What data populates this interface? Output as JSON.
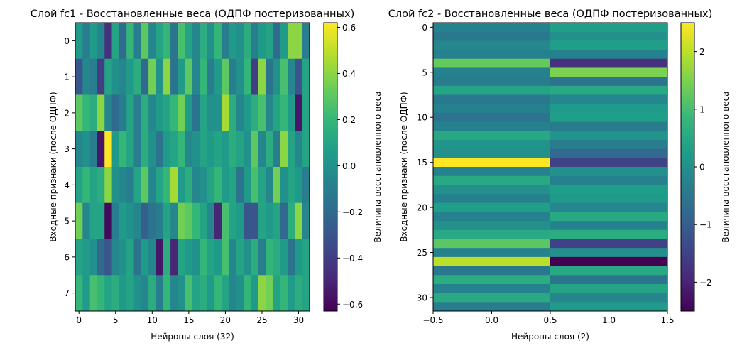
{
  "colors": {
    "viridis": [
      "#440154",
      "#482878",
      "#3e4989",
      "#31688e",
      "#26828e",
      "#1f9e89",
      "#35b779",
      "#6ece58",
      "#b5de2b",
      "#fde725"
    ]
  },
  "chart_data": [
    {
      "type": "heatmap",
      "title": "Слой fc1 - Восстановленные веса (ОДПФ постеризованных)",
      "xlabel": "Нейроны слоя (32)",
      "ylabel": "Входные признаки (после ОДПФ)",
      "colorbar_label": "Величина восстановленного веса",
      "xlim": [
        -0.5,
        31.5
      ],
      "ylim": [
        7.5,
        -0.5
      ],
      "x_ticks": [
        0,
        5,
        10,
        15,
        20,
        25,
        30
      ],
      "x_tick_labels": [
        "0",
        "5",
        "10",
        "15",
        "20",
        "25",
        "30"
      ],
      "y_ticks": [
        0,
        1,
        2,
        3,
        4,
        5,
        6,
        7
      ],
      "y_tick_labels": [
        "0",
        "1",
        "2",
        "3",
        "4",
        "5",
        "6",
        "7"
      ],
      "vmin": -0.63,
      "vmax": 0.62,
      "cbar_ticks": [
        0.6,
        0.4,
        0.2,
        0.0,
        -0.2,
        -0.4,
        -0.6
      ],
      "cbar_tick_labels": [
        "0.6",
        "0.4",
        "0.2",
        "0.0",
        "−0.2",
        "−0.4",
        "−0.6"
      ],
      "values": [
        [
          0.05,
          -0.1,
          0.05,
          -0.05,
          -0.45,
          0.1,
          -0.2,
          0.2,
          -0.1,
          0.3,
          -0.05,
          0.1,
          0.2,
          -0.15,
          0.25,
          0.1,
          -0.05,
          0.15,
          0.0,
          0.2,
          -0.1,
          0.05,
          0.0,
          0.15,
          -0.1,
          0.05,
          0.1,
          -0.2,
          0.05,
          0.4,
          0.4,
          -0.1
        ],
        [
          -0.3,
          -0.05,
          -0.1,
          -0.4,
          0.1,
          0.0,
          -0.05,
          0.05,
          0.15,
          -0.2,
          0.35,
          0.0,
          0.4,
          -0.15,
          0.05,
          0.3,
          -0.05,
          0.2,
          -0.1,
          0.05,
          0.3,
          -0.1,
          0.0,
          0.2,
          -0.4,
          0.4,
          -0.15,
          0.0,
          0.25,
          -0.05,
          -0.3,
          0.1
        ],
        [
          0.3,
          0.2,
          0.15,
          0.4,
          -0.05,
          -0.2,
          -0.1,
          0.1,
          -0.1,
          0.15,
          -0.05,
          0.05,
          0.1,
          0.2,
          0.35,
          0.05,
          -0.15,
          0.1,
          0.0,
          0.0,
          0.45,
          0.15,
          -0.05,
          0.05,
          0.15,
          0.25,
          -0.05,
          0.1,
          0.2,
          0.05,
          -0.55,
          0.1
        ],
        [
          -0.05,
          0.0,
          -0.1,
          -0.55,
          0.62,
          0.05,
          0.2,
          0.1,
          -0.1,
          0.15,
          0.0,
          -0.15,
          0.05,
          0.1,
          0.2,
          -0.05,
          0.0,
          0.1,
          0.05,
          0.1,
          0.05,
          0.15,
          0.1,
          0.0,
          0.3,
          -0.05,
          0.15,
          -0.1,
          0.4,
          0.1,
          -0.05,
          0.1
        ],
        [
          0.1,
          0.2,
          0.1,
          0.15,
          0.4,
          0.0,
          -0.05,
          -0.1,
          0.1,
          0.3,
          -0.05,
          0.1,
          0.2,
          0.45,
          0.05,
          0.15,
          -0.05,
          0.0,
          0.1,
          0.2,
          0.05,
          0.1,
          -0.15,
          0.05,
          0.25,
          0.1,
          -0.05,
          0.35,
          0.0,
          0.1,
          0.05,
          -0.1
        ],
        [
          0.35,
          -0.05,
          0.1,
          0.1,
          -0.6,
          -0.1,
          0.05,
          0.0,
          -0.05,
          -0.25,
          -0.15,
          -0.1,
          0.1,
          -0.05,
          0.35,
          0.3,
          0.2,
          0.1,
          -0.05,
          -0.5,
          0.25,
          0.1,
          0.05,
          -0.3,
          -0.3,
          0.1,
          0.05,
          0.1,
          -0.2,
          0.15,
          0.4,
          -0.05
        ],
        [
          0.1,
          0.05,
          0.0,
          -0.2,
          -0.3,
          -0.05,
          0.0,
          0.1,
          -0.15,
          0.05,
          -0.05,
          -0.55,
          0.15,
          -0.5,
          0.1,
          0.05,
          0.0,
          0.2,
          0.1,
          0.05,
          0.25,
          -0.05,
          0.1,
          0.0,
          0.15,
          -0.1,
          0.2,
          0.15,
          0.05,
          -0.15,
          0.05,
          0.1
        ],
        [
          0.2,
          0.05,
          0.25,
          0.2,
          0.1,
          0.15,
          0.05,
          0.1,
          0.0,
          -0.05,
          0.15,
          -0.1,
          0.2,
          -0.05,
          0.0,
          0.25,
          0.1,
          0.15,
          0.05,
          0.2,
          0.1,
          -0.05,
          0.0,
          0.2,
          0.05,
          0.4,
          0.35,
          0.1,
          0.2,
          0.05,
          0.15,
          0.1
        ]
      ]
    },
    {
      "type": "heatmap",
      "title": "Слой fc2 - Восстановленные веса (ОДПФ постеризованных)",
      "xlabel": "Нейроны слоя (2)",
      "ylabel": "Входные признаки (после ОДПФ)",
      "colorbar_label": "Величина восстановленного веса",
      "xlim": [
        -0.5,
        1.5
      ],
      "ylim": [
        31.5,
        -0.5
      ],
      "x_ticks": [
        -0.5,
        0.0,
        0.5,
        1.0,
        1.5
      ],
      "x_tick_labels": [
        "−0.5",
        "0.0",
        "0.5",
        "1.0",
        "1.5"
      ],
      "y_ticks": [
        0,
        5,
        10,
        15,
        20,
        25,
        30
      ],
      "y_tick_labels": [
        "0",
        "5",
        "10",
        "15",
        "20",
        "25",
        "30"
      ],
      "vmin": -2.5,
      "vmax": 2.5,
      "cbar_ticks": [
        2,
        1,
        0,
        -1,
        -2
      ],
      "cbar_tick_labels": [
        "2",
        "1",
        "0",
        "−1",
        "−2"
      ],
      "values": [
        [
          -0.3,
          0.3
        ],
        [
          -0.5,
          0.0
        ],
        [
          -0.2,
          0.3
        ],
        [
          -0.3,
          -0.3
        ],
        [
          1.3,
          -1.8
        ],
        [
          -0.3,
          1.5
        ],
        [
          -0.4,
          -0.6
        ],
        [
          0.4,
          0.5
        ],
        [
          -0.5,
          -0.2
        ],
        [
          -0.3,
          0.2
        ],
        [
          -0.6,
          0.3
        ],
        [
          -0.3,
          -0.4
        ],
        [
          0.5,
          0.1
        ],
        [
          0.1,
          -0.4
        ],
        [
          0.0,
          -0.8
        ],
        [
          2.5,
          -1.5
        ],
        [
          -0.3,
          0.0
        ],
        [
          0.5,
          -0.3
        ],
        [
          0.0,
          0.3
        ],
        [
          -0.3,
          0.2
        ],
        [
          0.3,
          -0.2
        ],
        [
          -0.3,
          0.5
        ],
        [
          0.0,
          -0.3
        ],
        [
          0.5,
          0.6
        ],
        [
          1.2,
          -1.5
        ],
        [
          -0.3,
          0.0
        ],
        [
          2.0,
          -2.5
        ],
        [
          -0.5,
          0.5
        ],
        [
          0.6,
          -0.6
        ],
        [
          -0.3,
          0.4
        ],
        [
          0.5,
          -0.2
        ],
        [
          -0.4,
          0.2
        ]
      ]
    }
  ]
}
